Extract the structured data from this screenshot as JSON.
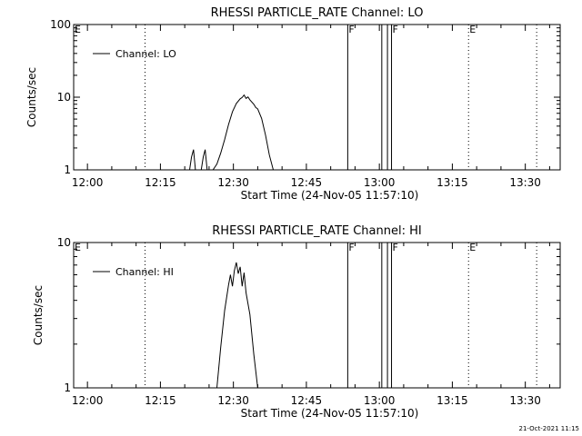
{
  "footer_timestamp": "21-Oct-2021 11:15",
  "chart_data": [
    {
      "type": "line",
      "title": "RHESSI PARTICLE_RATE Channel: LO",
      "xlabel": "Start Time (24-Nov-05 11:57:10)",
      "ylabel": "Counts/sec",
      "yscale": "log",
      "ylim": [
        1,
        100
      ],
      "xlim": [
        "11:57:10",
        "13:37:10"
      ],
      "ytick_labels": [
        "1",
        "10",
        "100"
      ],
      "xtick_labels": [
        "12:00",
        "12:15",
        "12:30",
        "12:45",
        "13:00",
        "13:15",
        "13:30"
      ],
      "legend": "top-left",
      "series": [
        {
          "name": "Channel: LO",
          "points": [
            [
              "12:21",
              1
            ],
            [
              "12:21:24",
              1.5
            ],
            [
              "12:21:48",
              1.9
            ],
            [
              "12:22:12",
              1
            ],
            [
              "12:23:24",
              1
            ],
            [
              "12:23:48",
              1.5
            ],
            [
              "12:24:12",
              1.9
            ],
            [
              "12:24:36",
              1
            ],
            [
              "12:25:48",
              1
            ],
            [
              "12:26:36",
              1.2
            ],
            [
              "12:27:24",
              1.7
            ],
            [
              "12:28:12",
              2.6
            ],
            [
              "12:29",
              4.2
            ],
            [
              "12:29:48",
              6.3
            ],
            [
              "12:30:36",
              8.2
            ],
            [
              "12:31:24",
              9.5
            ],
            [
              "12:31:48",
              9.9
            ],
            [
              "12:32:12",
              10.7
            ],
            [
              "12:32:36",
              9.6
            ],
            [
              "12:33",
              10.1
            ],
            [
              "12:33:24",
              9.2
            ],
            [
              "12:34:12",
              8.0
            ],
            [
              "12:34:36",
              7.2
            ],
            [
              "12:35",
              6.9
            ],
            [
              "12:35:48",
              5.1
            ],
            [
              "12:36:36",
              3.0
            ],
            [
              "12:37:24",
              1.6
            ],
            [
              "12:38:12",
              1
            ]
          ]
        }
      ],
      "annotations": [
        {
          "label": "E",
          "time": "11:57:10",
          "line": "none"
        },
        {
          "label": "",
          "time": "12:11:50",
          "line": "dotted"
        },
        {
          "label": "F",
          "time": "12:53:30",
          "line": "solid"
        },
        {
          "label": "",
          "time": "13:00:30",
          "line": "solid"
        },
        {
          "label": "",
          "time": "13:01:40",
          "line": "solid"
        },
        {
          "label": "F",
          "time": "13:02:30",
          "line": "solid"
        },
        {
          "label": "E",
          "time": "13:18:20",
          "line": "dotted"
        },
        {
          "label": "",
          "time": "13:32:20",
          "line": "dotted"
        }
      ]
    },
    {
      "type": "line",
      "title": "RHESSI PARTICLE_RATE Channel: HI",
      "xlabel": "Start Time (24-Nov-05 11:57:10)",
      "ylabel": "Counts/sec",
      "yscale": "log",
      "ylim": [
        1,
        10
      ],
      "xlim": [
        "11:57:10",
        "13:37:10"
      ],
      "ytick_labels": [
        "1",
        "10"
      ],
      "xtick_labels": [
        "12:00",
        "12:15",
        "12:30",
        "12:45",
        "13:00",
        "13:15",
        "13:30"
      ],
      "legend": "top-left",
      "series": [
        {
          "name": "Channel: HI",
          "points": [
            [
              "12:26:36",
              1
            ],
            [
              "12:27:24",
              1.9
            ],
            [
              "12:28:12",
              3.4
            ],
            [
              "12:29",
              5.1
            ],
            [
              "12:29:24",
              6.0
            ],
            [
              "12:29:48",
              5.0
            ],
            [
              "12:30:12",
              6.4
            ],
            [
              "12:30:36",
              7.3
            ],
            [
              "12:31",
              6.1
            ],
            [
              "12:31:24",
              6.8
            ],
            [
              "12:31:48",
              5.0
            ],
            [
              "12:32:12",
              6.2
            ],
            [
              "12:32:36",
              4.5
            ],
            [
              "12:33:24",
              3.2
            ],
            [
              "12:34:12",
              1.7
            ],
            [
              "12:35",
              1
            ]
          ]
        }
      ],
      "annotations": [
        {
          "label": "E",
          "time": "11:57:10",
          "line": "none"
        },
        {
          "label": "",
          "time": "12:11:50",
          "line": "dotted"
        },
        {
          "label": "F",
          "time": "12:53:30",
          "line": "solid"
        },
        {
          "label": "",
          "time": "13:00:30",
          "line": "solid"
        },
        {
          "label": "",
          "time": "13:01:40",
          "line": "solid"
        },
        {
          "label": "F",
          "time": "13:02:30",
          "line": "solid"
        },
        {
          "label": "E",
          "time": "13:18:20",
          "line": "dotted"
        },
        {
          "label": "",
          "time": "13:32:20",
          "line": "dotted"
        }
      ]
    }
  ]
}
